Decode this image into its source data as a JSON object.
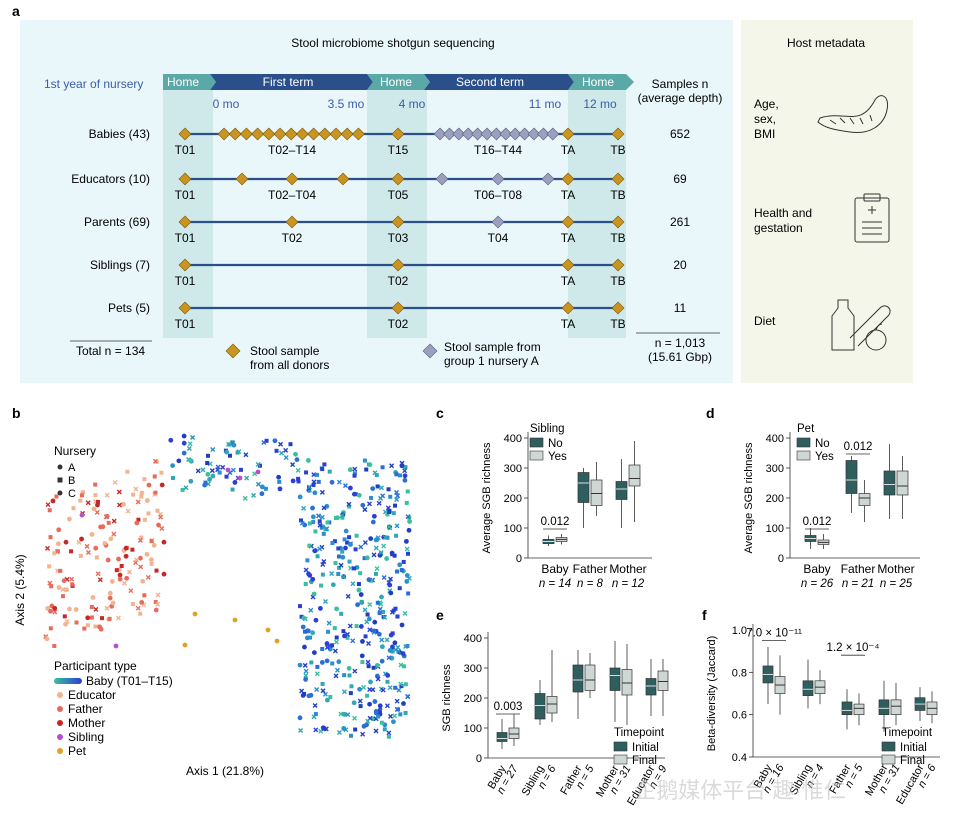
{
  "panel_a": {
    "letter": "a",
    "title": "Stool microbiome shotgun sequencing",
    "host_title": "Host metadata",
    "row_label_header": "1st year of nursery",
    "timeline": [
      {
        "label": "Home",
        "kind": "home"
      },
      {
        "label": "First term",
        "kind": "term"
      },
      {
        "label": "Home",
        "kind": "home"
      },
      {
        "label": "Second term",
        "kind": "term"
      },
      {
        "label": "Home",
        "kind": "home"
      }
    ],
    "time_ticks": [
      "0 mo",
      "3.5 mo",
      "4 mo",
      "11 mo",
      "12 mo"
    ],
    "samples_header": [
      "Samples n",
      "(average depth)"
    ],
    "rows": [
      {
        "label": "Babies (43)",
        "samples": "652",
        "tags": [
          "T01",
          "T02–T14",
          "T15",
          "T16–T44",
          "TA",
          "TB"
        ]
      },
      {
        "label": "Educators (10)",
        "samples": "69",
        "tags": [
          "T01",
          "T02–T04",
          "T05",
          "T06–T08",
          "TA",
          "TB"
        ]
      },
      {
        "label": "Parents (69)",
        "samples": "261",
        "tags": [
          "T01",
          "T02",
          "T03",
          "T04",
          "TA",
          "TB"
        ]
      },
      {
        "label": "Siblings (7)",
        "samples": "20",
        "tags": [
          "T01",
          "T02",
          "TA",
          "TB"
        ]
      },
      {
        "label": "Pets (5)",
        "samples": "11",
        "tags": [
          "T01",
          "T02",
          "TA",
          "TB"
        ]
      }
    ],
    "total_left": "Total n = 134",
    "total_right": [
      "n = 1,013",
      "(15.61 Gbp)"
    ],
    "legend_gold": [
      "Stool sample",
      "from all donors"
    ],
    "legend_grey": [
      "Stool sample from",
      "group 1 nursery A"
    ],
    "host_items": [
      {
        "lines": [
          "Age,",
          "sex,",
          "BMI"
        ],
        "icon": "tape-measure-icon"
      },
      {
        "lines": [
          "Health and",
          "gestation"
        ],
        "icon": "clipboard-icon"
      },
      {
        "lines": [
          "Diet"
        ],
        "icon": "food-icon"
      }
    ],
    "colors": {
      "home": "#5aa9a7",
      "term": "#2a4f8a",
      "gold": "#c9941f",
      "grey": "#9aa0bd",
      "bg": "#e9f6fa",
      "host_bg": "#f4f6ea"
    }
  },
  "panel_b": {
    "letter": "b",
    "x_label": "Axis 1 (21.8%)",
    "y_label": "Axis 2 (5.4%)",
    "nursery_title": "Nursery",
    "nurseries": [
      "A",
      "B",
      "C"
    ],
    "participant_title": "Participant type",
    "participants": [
      {
        "label": "Baby (T01–T15)",
        "color": "#2b6fd6"
      },
      {
        "label": "Educator",
        "color": "#f2b38f"
      },
      {
        "label": "Father",
        "color": "#e86a5a"
      },
      {
        "label": "Mother",
        "color": "#c62828"
      },
      {
        "label": "Sibling",
        "color": "#b44fd0"
      },
      {
        "label": "Pet",
        "color": "#e0a125"
      }
    ]
  },
  "chart_data": [
    {
      "id": "c",
      "type": "box",
      "title": "Sibling",
      "ylabel": "Average SGB richness",
      "ylim": [
        0,
        400
      ],
      "yticks": [
        0,
        100,
        200,
        300,
        400
      ],
      "categories": [
        "Baby",
        "Father",
        "Mother"
      ],
      "n_labels": [
        "n = 14",
        "n = 8",
        "n = 12"
      ],
      "series": [
        {
          "name": "No",
          "color": "#2f5e5e",
          "boxes": [
            [
              40,
              48,
              55,
              62,
              75
            ],
            [
              100,
              185,
              250,
              285,
              300
            ],
            [
              100,
              195,
              230,
              255,
              330
            ]
          ]
        },
        {
          "name": "Yes",
          "color": "#cfd7d4",
          "boxes": [
            [
              45,
              55,
              62,
              68,
              80
            ],
            [
              140,
              175,
              215,
              260,
              320
            ],
            [
              120,
              240,
              265,
              310,
              390
            ]
          ]
        }
      ],
      "annotations": [
        {
          "text": "0.012",
          "category": 0,
          "y": 110
        }
      ]
    },
    {
      "id": "d",
      "type": "box",
      "title": "Pet",
      "ylabel": "Average SGB richness",
      "ylim": [
        0,
        400
      ],
      "yticks": [
        0,
        100,
        200,
        300,
        400
      ],
      "categories": [
        "Baby",
        "Father",
        "Mother"
      ],
      "n_labels": [
        "n = 26",
        "n = 21",
        "n = 25"
      ],
      "series": [
        {
          "name": "No",
          "color": "#2f5e5e",
          "boxes": [
            [
              30,
              55,
              65,
              75,
              100
            ],
            [
              150,
              215,
              260,
              325,
              340
            ],
            [
              130,
              210,
              245,
              290,
              380
            ]
          ]
        },
        {
          "name": "Yes",
          "color": "#cfd7d4",
          "boxes": [
            [
              30,
              45,
              52,
              60,
              80
            ],
            [
              120,
              175,
              200,
              215,
              260
            ],
            [
              130,
              210,
              240,
              290,
              340
            ]
          ]
        }
      ],
      "annotations": [
        {
          "text": "0.012",
          "category": 0,
          "y": 110
        },
        {
          "text": "0.012",
          "category": 1,
          "y": 360
        }
      ]
    },
    {
      "id": "e",
      "type": "box",
      "title": "Timepoint",
      "ylabel": "SGB richness",
      "ylim": [
        0,
        400
      ],
      "yticks": [
        0,
        100,
        200,
        300,
        400
      ],
      "categories": [
        "Baby",
        "Sibling",
        "Father",
        "Mother",
        "Educator"
      ],
      "n_labels": [
        "n = 27",
        "n = 6",
        "n = 5",
        "n = 31",
        "n = 9"
      ],
      "series": [
        {
          "name": "Initial",
          "color": "#2f5e5e",
          "boxes": [
            [
              30,
              55,
              65,
              85,
              130
            ],
            [
              110,
              130,
              175,
              215,
              260
            ],
            [
              130,
              220,
              260,
              310,
              360
            ],
            [
              120,
              225,
              275,
              300,
              390
            ],
            [
              140,
              210,
              240,
              265,
              330
            ]
          ]
        },
        {
          "name": "Final",
          "color": "#cfd7d4",
          "boxes": [
            [
              40,
              65,
              80,
              100,
              145
            ],
            [
              120,
              150,
              180,
              205,
              360
            ],
            [
              200,
              225,
              260,
              310,
              350
            ],
            [
              110,
              210,
              250,
              295,
              380
            ],
            [
              140,
              225,
              255,
              290,
              330
            ]
          ]
        }
      ],
      "annotations": [
        {
          "text": "0.003",
          "category": 0,
          "y": 160
        }
      ]
    },
    {
      "id": "f",
      "type": "box",
      "title": "Timepoint",
      "ylabel": "Beta-diversity (Jaccard)",
      "ylim": [
        0.4,
        1.0
      ],
      "yticks": [
        0.4,
        0.6,
        0.8,
        1.0
      ],
      "categories": [
        "Baby",
        "Sibling",
        "Father",
        "Mother",
        "Educator"
      ],
      "n_labels": [
        "n = 16",
        "n = 4",
        "n = 5",
        "n = 31",
        "n = 6"
      ],
      "series": [
        {
          "name": "Initial",
          "color": "#2f5e5e",
          "boxes": [
            [
              0.65,
              0.75,
              0.79,
              0.83,
              0.92
            ],
            [
              0.63,
              0.69,
              0.72,
              0.76,
              0.86
            ],
            [
              0.53,
              0.6,
              0.62,
              0.66,
              0.72
            ],
            [
              0.52,
              0.6,
              0.63,
              0.67,
              0.76
            ],
            [
              0.57,
              0.62,
              0.65,
              0.68,
              0.73
            ]
          ]
        },
        {
          "name": "Final",
          "color": "#cfd7d4",
          "boxes": [
            [
              0.6,
              0.7,
              0.74,
              0.78,
              0.88
            ],
            [
              0.65,
              0.7,
              0.73,
              0.76,
              0.81
            ],
            [
              0.55,
              0.6,
              0.63,
              0.65,
              0.7
            ],
            [
              0.55,
              0.6,
              0.64,
              0.67,
              0.75
            ],
            [
              0.56,
              0.6,
              0.63,
              0.66,
              0.71
            ]
          ]
        }
      ],
      "annotations": [
        {
          "text": "7.0 × 10⁻¹¹",
          "category": 0,
          "y": 0.97
        },
        {
          "text": "1.2 × 10⁻⁴",
          "category": 2,
          "y": 0.9
        }
      ]
    }
  ],
  "watermark": "企鹅媒体平台 趣·惟仁"
}
